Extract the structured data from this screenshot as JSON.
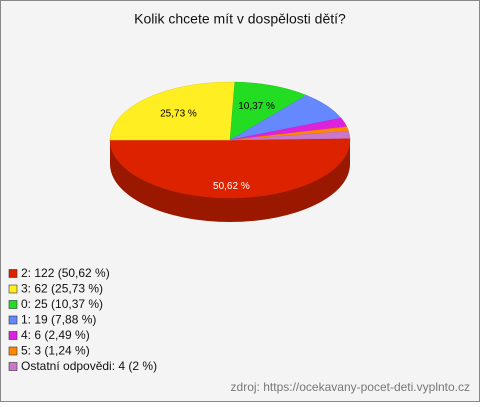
{
  "chart_data": {
    "type": "pie",
    "title": "Kolik chcete mít v dospělosti dětí?",
    "categories": [
      "2: 122 (50,62 %)",
      "3: 62 (25,73 %)",
      "0: 25 (10,37 %)",
      "1: 19 (7,88 %)",
      "4: 6 (2,49 %)",
      "5: 3 (1,24 %)",
      "Ostatní odpovědi: 4 (2 %)"
    ],
    "values": [
      50.62,
      25.73,
      10.37,
      7.88,
      2.49,
      1.24,
      2
    ],
    "value_labels": [
      "50,62 %",
      "25,73 %",
      "10,37 %",
      null,
      null,
      null,
      null
    ],
    "colors": [
      "#dd2200",
      "#ffee22",
      "#22dd22",
      "#6688ff",
      "#dd22dd",
      "#ff8800",
      "#cc77cc"
    ],
    "source": "zdroj: https://ocekavany-pocet-deti.vyplnto.cz"
  }
}
